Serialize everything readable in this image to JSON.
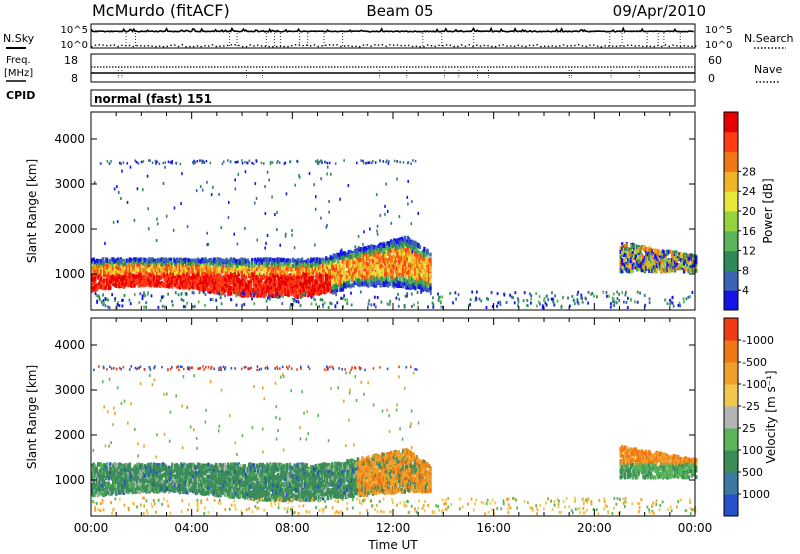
{
  "header": {
    "station": "McMurdo (fitACF)",
    "beam": "Beam 05",
    "date": "09/Apr/2010"
  },
  "top_panels": {
    "nsky_label": "N.Sky",
    "nsearch_label": "N.Search",
    "nsky_ticks": [
      "10^5",
      "10^0"
    ],
    "freq_label_1": "Freq.",
    "freq_label_2": "[MHz]",
    "freq_ticks": [
      "18",
      "8"
    ],
    "nave_label": "Nave",
    "nave_ticks": [
      "60",
      "0"
    ],
    "cpid_label": "CPID",
    "cpid_value": "normal (fast) 151"
  },
  "chart_data": [
    {
      "type": "heatmap",
      "panel": "power",
      "ylabel": "Slant Range [km]",
      "xlabel": "",
      "ylim": [
        200,
        4600
      ],
      "yticks": [
        "1000",
        "2000",
        "3000",
        "4000"
      ],
      "colorbar_label": "Power [dB]",
      "colorbar_ticks": [
        "4",
        "8",
        "12",
        "16",
        "20",
        "24",
        "28"
      ],
      "colorbar_colors": [
        "#1414e6",
        "#3c64b4",
        "#2e8b57",
        "#5ab45a",
        "#96d23c",
        "#e6e63c",
        "#f0b428",
        "#f07814",
        "#ff3c14",
        "#e60000"
      ],
      "regions": [
        {
          "t": [
            0,
            13.5
          ],
          "range": [
            600,
            1400
          ],
          "desc": "main band"
        }
      ]
    },
    {
      "type": "heatmap",
      "panel": "velocity",
      "ylabel": "Slant Range [km]",
      "xlabel": "Time UT",
      "xticks": [
        "00:00",
        "04:00",
        "08:00",
        "12:00",
        "16:00",
        "20:00",
        "00:00"
      ],
      "ylim": [
        200,
        4600
      ],
      "yticks": [
        "1000",
        "2000",
        "3000",
        "4000"
      ],
      "colorbar_label": "Velocity [m s⁻¹]",
      "colorbar_ticks": [
        "1000",
        "500",
        "100",
        "25",
        "-25",
        "-100",
        "-500",
        "-1000"
      ],
      "colorbar_colors": [
        "#2850c8",
        "#3c78a0",
        "#3c8c5a",
        "#5ab45a",
        "#b4b4b4",
        "#f0c850",
        "#f0a028",
        "#f07814",
        "#f03c14"
      ]
    }
  ]
}
